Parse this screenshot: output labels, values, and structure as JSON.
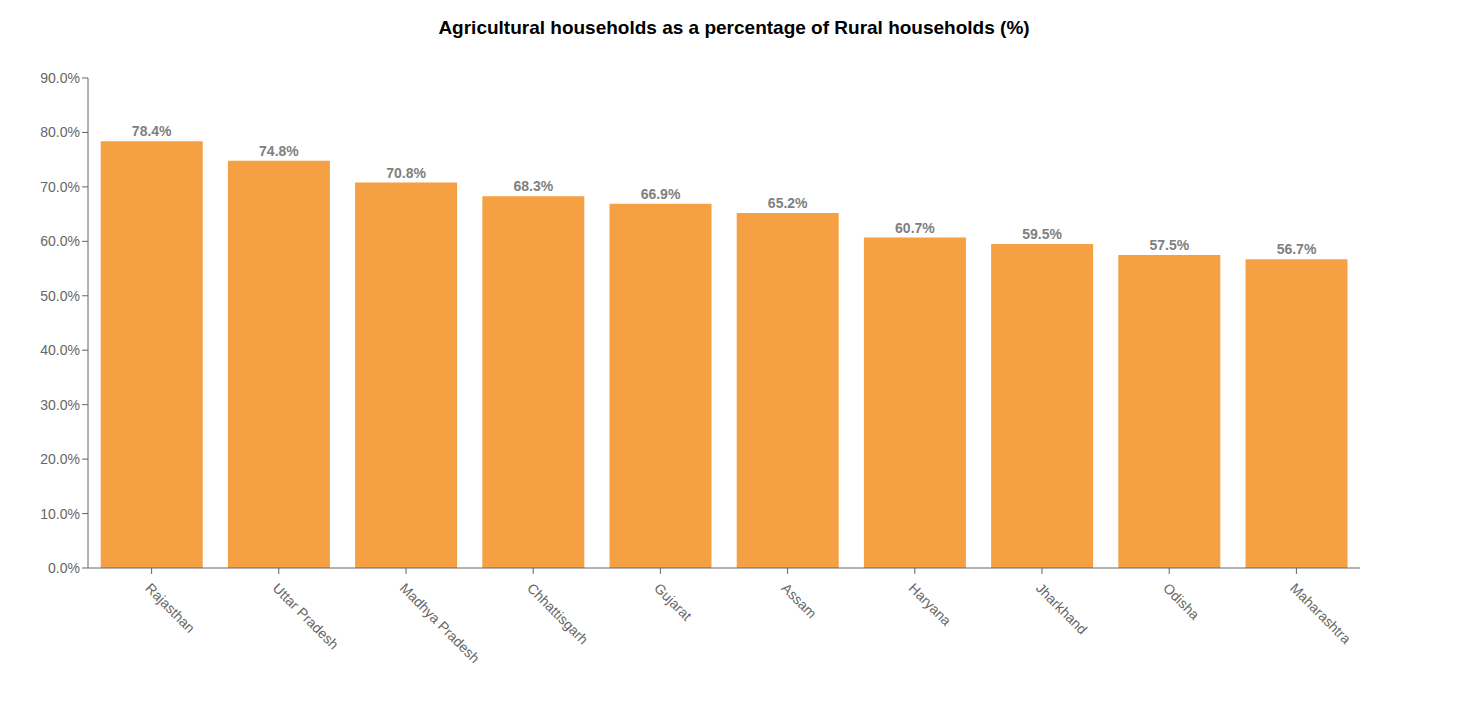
{
  "chart_data": {
    "type": "bar",
    "title": "Agricultural households  as a percentage of Rural  households (%)",
    "categories": [
      "Rajasthan",
      "Uttar Pradesh",
      "Madhya Pradesh",
      "Chhattisgarh",
      "Gujarat",
      "Assam",
      "Haryana",
      "Jharkhand",
      "Odisha",
      "Maharashtra"
    ],
    "values": [
      78.4,
      74.8,
      70.8,
      68.3,
      66.9,
      65.2,
      60.7,
      59.5,
      57.5,
      56.7
    ],
    "value_labels": [
      "78.4%",
      "74.8%",
      "70.8%",
      "68.3%",
      "66.9%",
      "65.2%",
      "60.7%",
      "59.5%",
      "57.5%",
      "56.7%"
    ],
    "data_labels": true,
    "color": "#F5A042",
    "ylim": [
      0,
      90
    ],
    "yticks": [
      {
        "value": 0,
        "label": "0.0%"
      },
      {
        "value": 10,
        "label": "10.0%"
      },
      {
        "value": 20,
        "label": "20.0%"
      },
      {
        "value": 30,
        "label": "30.0%"
      },
      {
        "value": 40,
        "label": "40.0%"
      },
      {
        "value": 50,
        "label": "50.0%"
      },
      {
        "value": 60,
        "label": "60.0%"
      },
      {
        "value": 70,
        "label": "70.0%"
      },
      {
        "value": 80,
        "label": "80.0%"
      },
      {
        "value": 90,
        "label": "90.0%"
      }
    ],
    "grid": false
  }
}
